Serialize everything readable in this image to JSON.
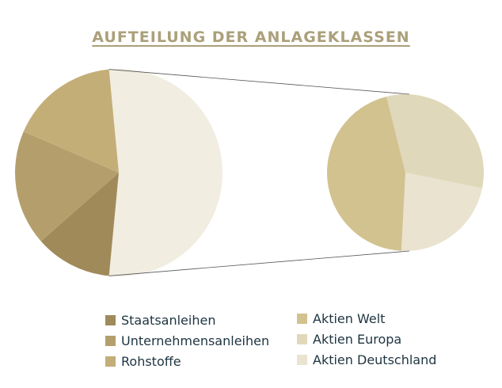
{
  "chart_data": {
    "type": "pie",
    "subtype": "pie-of-pie",
    "title": "AUFTEILUNG DER ANLAGEKLASSEN",
    "main_pie": [
      {
        "name": "Aktien",
        "value": 53,
        "color": "#F1EDE1",
        "expanded": true
      },
      {
        "name": "Staatsanleihen",
        "value": 12,
        "color": "#A08A5A"
      },
      {
        "name": "Unternehmensanleihen",
        "value": 18,
        "color": "#B49F6C"
      },
      {
        "name": "Rohstoffe",
        "value": 17,
        "color": "#C4AE78"
      }
    ],
    "secondary_pie": [
      {
        "name": "Aktien Europa",
        "value": 17,
        "color": "#E0D8BA"
      },
      {
        "name": "Aktien Deutschland",
        "value": 12,
        "color": "#E9E3D0"
      },
      {
        "name": "Aktien Welt",
        "value": 24,
        "color": "#D2C28F"
      }
    ],
    "legend": [
      {
        "label": "Staatsanleihen",
        "color": "#A08A5A"
      },
      {
        "label": "Unternehmensanleihen",
        "color": "#B49F6C"
      },
      {
        "label": "Rohstoffe",
        "color": "#C4AE78"
      },
      {
        "label": "Aktien Welt",
        "color": "#D2C28F"
      },
      {
        "label": "Aktien Europa",
        "color": "#E0D8BA"
      },
      {
        "label": "Aktien Deutschland",
        "color": "#E9E3D0"
      }
    ],
    "legend_position": "bottom"
  }
}
